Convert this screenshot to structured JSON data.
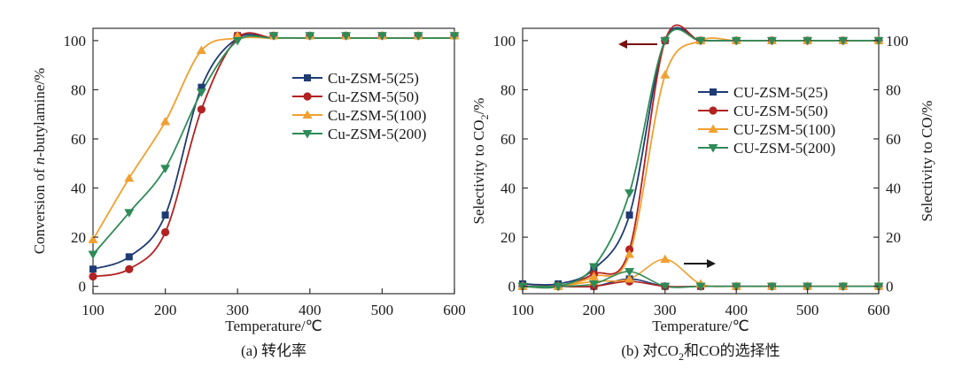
{
  "chart_data": [
    {
      "type": "line",
      "caption": "(a) 转化率",
      "xlabel": "Temperature/℃",
      "ylabel": "Conversion of n-butylamine/%",
      "xlim": [
        100,
        600
      ],
      "ylim": [
        -3,
        105
      ],
      "xticks": [
        100,
        200,
        300,
        400,
        500,
        600
      ],
      "yticks": [
        0,
        20,
        40,
        60,
        80,
        100
      ],
      "grid": false,
      "legend_position": "right-center",
      "series": [
        {
          "name": "Cu-ZSM-5(25)",
          "color": "#1f3b73",
          "marker": "square",
          "x": [
            100,
            150,
            200,
            250,
            300,
            350,
            400,
            450,
            500,
            550,
            600
          ],
          "y": [
            7,
            12,
            29,
            81,
            102,
            102,
            102,
            102,
            102,
            102,
            102
          ]
        },
        {
          "name": "Cu-ZSM-5(50)",
          "color": "#b22222",
          "marker": "circle",
          "x": [
            100,
            150,
            200,
            250,
            300,
            350,
            400,
            450,
            500,
            550,
            600
          ],
          "y": [
            4,
            7,
            22,
            72,
            102,
            102,
            102,
            102,
            102,
            102,
            102
          ]
        },
        {
          "name": "Cu-ZSM-5(100)",
          "color": "#f0a030",
          "marker": "triangle-up",
          "x": [
            100,
            150,
            200,
            250,
            300,
            350,
            400,
            450,
            500,
            550,
            600
          ],
          "y": [
            19,
            44,
            67,
            96,
            102,
            102,
            102,
            102,
            102,
            102,
            102
          ]
        },
        {
          "name": "Cu-ZSM-5(200)",
          "color": "#2e8b57",
          "marker": "triangle-down",
          "x": [
            100,
            150,
            200,
            250,
            300,
            350,
            400,
            450,
            500,
            550,
            600
          ],
          "y": [
            13,
            30,
            48,
            79,
            100,
            102,
            102,
            102,
            102,
            102,
            102
          ]
        }
      ]
    },
    {
      "type": "line",
      "caption": "(b) 对CO2和CO的选择性",
      "xlabel": "Temperature/℃",
      "ylabel_left": "Selectivity to CO2/%",
      "ylabel_right": "Selectivity to CO/%",
      "xlim": [
        100,
        600
      ],
      "ylim": [
        -3,
        105
      ],
      "xticks": [
        100,
        200,
        300,
        400,
        500,
        600
      ],
      "yticks": [
        0,
        20,
        40,
        60,
        80,
        100
      ],
      "grid": false,
      "legend_position": "right-center",
      "series": [
        {
          "name": "CU-ZSM-5(25)",
          "color": "#1f3b73",
          "marker": "square",
          "x": [
            100,
            150,
            200,
            250,
            300,
            350,
            400,
            450,
            500,
            550,
            600
          ],
          "co2": [
            1,
            1,
            7,
            29,
            100,
            100,
            100,
            100,
            100,
            100,
            100
          ],
          "co": [
            0,
            0,
            0,
            3,
            0,
            0,
            0,
            0,
            0,
            0,
            0
          ]
        },
        {
          "name": "CU-ZSM-5(50)",
          "color": "#b22222",
          "marker": "circle",
          "x": [
            100,
            150,
            200,
            250,
            300,
            350,
            400,
            450,
            500,
            550,
            600
          ],
          "co2": [
            0,
            0,
            5,
            15,
            100,
            100,
            100,
            100,
            100,
            100,
            100
          ],
          "co": [
            0,
            0,
            0,
            2,
            0,
            0,
            0,
            0,
            0,
            0,
            0
          ]
        },
        {
          "name": "CU-ZSM-5(100)",
          "color": "#f0a030",
          "marker": "triangle-up",
          "x": [
            100,
            150,
            200,
            250,
            300,
            350,
            400,
            450,
            500,
            550,
            600
          ],
          "co2": [
            0,
            0,
            4,
            13,
            86,
            100,
            100,
            100,
            100,
            100,
            100
          ],
          "co": [
            0,
            0,
            2,
            3,
            11,
            1,
            0,
            0,
            0,
            0,
            0
          ]
        },
        {
          "name": "CU-ZSM-5(200)",
          "color": "#2e8b57",
          "marker": "triangle-down",
          "x": [
            100,
            150,
            200,
            250,
            300,
            350,
            400,
            450,
            500,
            550,
            600
          ],
          "co2": [
            0,
            0,
            8,
            38,
            100,
            100,
            100,
            100,
            100,
            100,
            100
          ],
          "co": [
            0,
            0,
            1,
            6,
            0,
            0,
            0,
            0,
            0,
            0,
            0
          ]
        }
      ]
    }
  ]
}
